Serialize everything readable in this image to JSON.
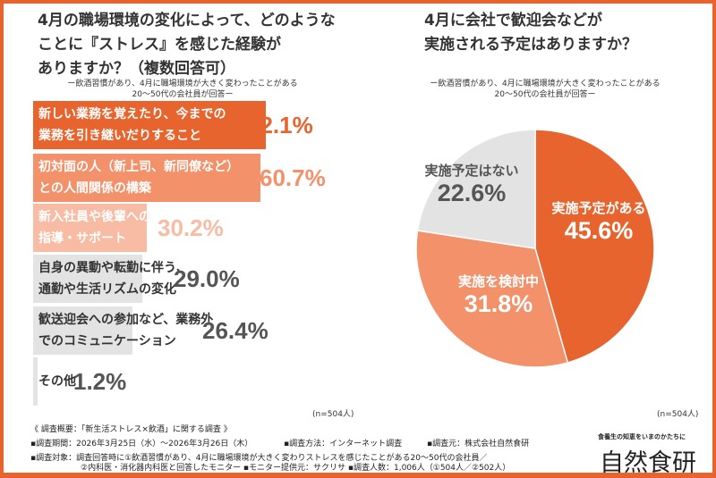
{
  "chart_data": [
    {
      "type": "bar",
      "orientation": "horizontal",
      "title": [
        "4月の職場環境の変化によって、どのような",
        "ことに『ストレス』を感じた経験が",
        "ありますか？（複数回答可）"
      ],
      "subtitle": [
        "ー飲酒習慣があり、4月に職場環境が大きく変わったことがある",
        "20〜50代の会社員が回答ー"
      ],
      "categories": [
        [
          "新しい業務を覚えたり、今までの",
          "業務を引き継いだりすること"
        ],
        [
          "初対面の人（新上司、新同僚など）",
          "との人間関係の構築"
        ],
        [
          "新入社員や後輩への",
          "指導・サポート"
        ],
        [
          "自身の異動や転勤に伴う、",
          "通勤や生活リズムの変化"
        ],
        [
          "歓送迎会への参加など、業務外",
          "でのコミュニケーション"
        ],
        [
          "その他"
        ]
      ],
      "values": [
        62.1,
        60.7,
        30.2,
        29.0,
        26.4,
        1.2
      ],
      "value_labels": [
        "62.1%",
        "60.7%",
        "30.2%",
        "29.0%",
        "26.4%",
        "1.2%"
      ],
      "colors": [
        "#e8642e",
        "#f3916a",
        "#f8bba3",
        "#e3e3e3",
        "#e3e3e3",
        "#e3e3e3"
      ],
      "label_colors": [
        "#ffffff",
        "#ffffff",
        "#ffffff",
        "#333333",
        "#333333",
        "#333333"
      ],
      "value_colors": [
        "#e8642e",
        "#f3916a",
        "#f8bba3",
        "#555555",
        "#555555",
        "#555555"
      ],
      "n_label": "(n=504人)"
    },
    {
      "type": "pie",
      "title": [
        "4月に会社で歓迎会などが",
        "実施される予定はありますか？"
      ],
      "subtitle": [
        "ー飲酒習慣があり、4月に職場環境が大きく変わったことがある",
        "20〜50代の会社員が回答ー"
      ],
      "categories": [
        "実施予定がある",
        "実施を検討中",
        "実施予定はない"
      ],
      "values": [
        45.6,
        31.8,
        22.6
      ],
      "value_labels": [
        "45.6%",
        "31.8%",
        "22.6%"
      ],
      "colors": [
        "#e8642e",
        "#f3916a",
        "#e3e3e3"
      ],
      "n_label": "(n=504人)"
    }
  ],
  "footer": {
    "lines": [
      "《 調査概要：「新生活ストレス×飲酒」に関する調査 》",
      "▪調査期間：2026年3月25日（水）〜2026年3月26日（木）",
      "▪調査方法：インターネット調査",
      "▪調査元：株式会社自然食研",
      "▪調査対象：調査回答時に①飲酒習慣があり、4月に職場環境が大きく変わりストレスを感じたことがある20〜50代の会社員／",
      "②内科医・消化器内科医と回答したモニター ▪モニター提供元：サクリサ ▪調査人数：1,006人（①504人／②502人）"
    ],
    "logo_tagline": "食養生の知恵をいまのかたちに",
    "logo": "自然食研"
  }
}
